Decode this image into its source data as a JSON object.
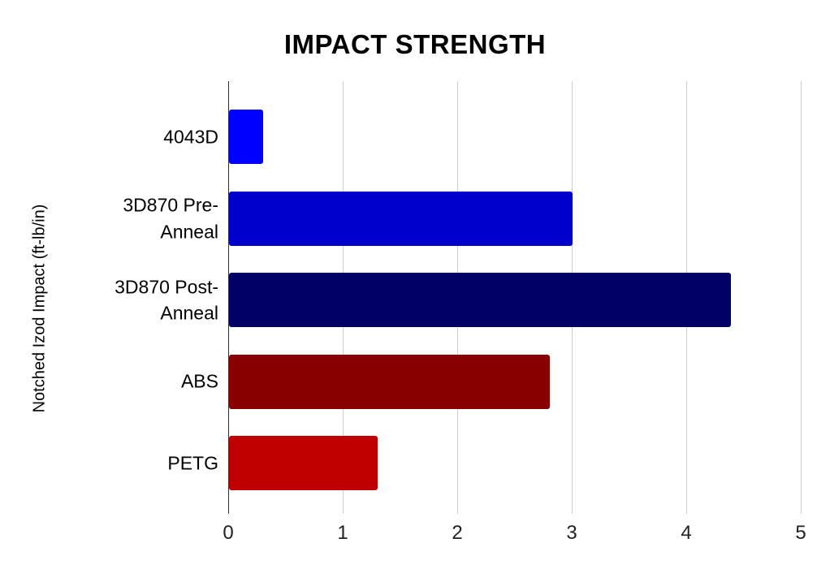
{
  "title": "IMPACT STRENGTH",
  "chart_data": {
    "type": "bar",
    "orientation": "horizontal",
    "title": "IMPACT STRENGTH",
    "xlabel": "",
    "ylabel": "Notched Izod Impact (ft-lb/in)",
    "categories": [
      "4043D",
      "3D870 Pre-Anneal",
      "3D870 Post-Anneal",
      "ABS",
      "PETG"
    ],
    "values": [
      0.3,
      3,
      4.38,
      2.8,
      1.3
    ],
    "bar_colors": [
      "#0000FF",
      "#0000CC",
      "#000066",
      "#880000",
      "#C00000"
    ],
    "xlim": [
      0,
      5
    ],
    "x_ticks": [
      "0",
      "1",
      "2",
      "3",
      "4",
      "5"
    ],
    "grid": true,
    "legend": "none",
    "background_color": "#FFFFFF",
    "gridline_color": "#CCCCCC",
    "zero_axis_color": "#333333",
    "text_color": "#000000"
  }
}
